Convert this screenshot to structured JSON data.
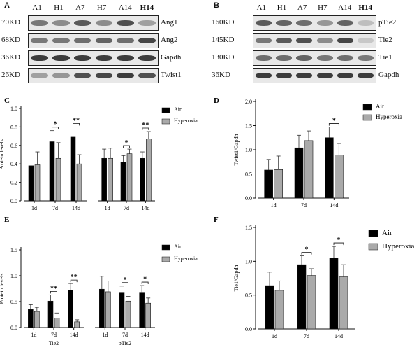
{
  "blot_A": {
    "letter": "A",
    "lanes": [
      "A1",
      "H1",
      "A7",
      "H7",
      "A14",
      "H14"
    ],
    "rows": [
      {
        "weight": "70KD",
        "protein": "Ang1",
        "intensity": [
          0.55,
          0.45,
          0.7,
          0.45,
          0.75,
          0.35
        ]
      },
      {
        "weight": "68KD",
        "protein": "Ang2",
        "intensity": [
          0.55,
          0.55,
          0.6,
          0.65,
          0.6,
          0.8
        ]
      },
      {
        "weight": "36KD",
        "protein": "Gapdh",
        "intensity": [
          0.85,
          0.85,
          0.85,
          0.85,
          0.85,
          0.85
        ]
      },
      {
        "weight": "26KD",
        "protein": "Twist1",
        "intensity": [
          0.35,
          0.4,
          0.75,
          0.8,
          0.85,
          0.75
        ]
      }
    ]
  },
  "blot_B": {
    "letter": "B",
    "lanes": [
      "A1",
      "H1",
      "A7",
      "H7",
      "A14",
      "H14"
    ],
    "rows": [
      {
        "weight": "160KD",
        "protein": "pTie2",
        "intensity": [
          0.7,
          0.65,
          0.6,
          0.4,
          0.65,
          0.2
        ]
      },
      {
        "weight": "145KD",
        "protein": "Tie2",
        "intensity": [
          0.55,
          0.7,
          0.75,
          0.45,
          0.8,
          0.15
        ]
      },
      {
        "weight": "130KD",
        "protein": "Tie1",
        "intensity": [
          0.6,
          0.6,
          0.65,
          0.55,
          0.6,
          0.55
        ]
      },
      {
        "weight": "36KD",
        "protein": "Gapdh",
        "intensity": [
          0.85,
          0.85,
          0.85,
          0.85,
          0.85,
          0.85
        ]
      }
    ]
  },
  "chart_data": [
    {
      "letter": "C",
      "type": "bar",
      "ylabel": "Protein levels",
      "ylim": [
        0,
        1.0
      ],
      "yticks": [
        0.0,
        0.2,
        0.4,
        0.6,
        0.8,
        1.0
      ],
      "groups": [
        {
          "name": "Ang1",
          "categories": [
            "1d",
            "7d",
            "14d"
          ],
          "air": [
            0.38,
            0.64,
            0.69
          ],
          "air_err": [
            0.17,
            0.12,
            0.11
          ],
          "hyperoxia": [
            0.39,
            0.46,
            0.4
          ],
          "hyperoxia_err": [
            0.14,
            0.17,
            0.1
          ],
          "sig": [
            "",
            "*",
            "**"
          ]
        },
        {
          "name": "Ang2",
          "categories": [
            "1d",
            "7d",
            "14d"
          ],
          "air": [
            0.46,
            0.42,
            0.46
          ],
          "air_err": [
            0.1,
            0.07,
            0.07
          ],
          "hyperoxia": [
            0.46,
            0.51,
            0.67
          ],
          "hyperoxia_err": [
            0.11,
            0.05,
            0.08
          ],
          "sig": [
            "",
            "*",
            "**"
          ]
        }
      ],
      "legend": [
        "Air",
        "Hyperoxia"
      ]
    },
    {
      "letter": "D",
      "type": "bar",
      "ylabel": "Twist1/Gapdh",
      "ylim": [
        0,
        2.0
      ],
      "yticks": [
        0.0,
        0.5,
        1.0,
        1.5,
        2.0
      ],
      "groups": [
        {
          "name": "",
          "categories": [
            "1d",
            "7d",
            "14d"
          ],
          "air": [
            0.58,
            1.04,
            1.25
          ],
          "air_err": [
            0.22,
            0.26,
            0.22
          ],
          "hyperoxia": [
            0.59,
            1.19,
            0.89
          ],
          "hyperoxia_err": [
            0.28,
            0.2,
            0.24
          ],
          "sig": [
            "",
            "",
            "*"
          ]
        }
      ],
      "legend": [
        "Air",
        "Hyperoxia"
      ]
    },
    {
      "letter": "E",
      "type": "bar",
      "ylabel": "Protein levels",
      "ylim": [
        0,
        1.5
      ],
      "yticks": [
        0.0,
        0.5,
        1.0,
        1.5
      ],
      "groups": [
        {
          "name": "Tie2",
          "categories": [
            "1d",
            "7d",
            "14d"
          ],
          "air": [
            0.35,
            0.51,
            0.72
          ],
          "air_err": [
            0.09,
            0.12,
            0.13
          ],
          "hyperoxia": [
            0.31,
            0.18,
            0.11
          ],
          "hyperoxia_err": [
            0.08,
            0.1,
            0.04
          ],
          "sig": [
            "",
            "**",
            "**"
          ]
        },
        {
          "name": "pTie2",
          "categories": [
            "1d",
            "7d",
            "14d"
          ],
          "air": [
            0.74,
            0.68,
            0.68
          ],
          "air_err": [
            0.25,
            0.12,
            0.13
          ],
          "hyperoxia": [
            0.69,
            0.51,
            0.47
          ],
          "hyperoxia_err": [
            0.21,
            0.09,
            0.1
          ],
          "sig": [
            "",
            "*",
            "*"
          ]
        }
      ],
      "legend": [
        "Air",
        "Hyperoxia"
      ]
    },
    {
      "letter": "F",
      "type": "bar",
      "ylabel": "Tie1/Gapdh",
      "ylim": [
        0,
        1.5
      ],
      "yticks": [
        0.0,
        0.5,
        1.0,
        1.5
      ],
      "groups": [
        {
          "name": "",
          "categories": [
            "1d",
            "7d",
            "14d"
          ],
          "air": [
            0.64,
            0.95,
            1.05
          ],
          "air_err": [
            0.2,
            0.13,
            0.17
          ],
          "hyperoxia": [
            0.57,
            0.79,
            0.77
          ],
          "hyperoxia_err": [
            0.14,
            0.1,
            0.18
          ],
          "sig": [
            "",
            "*",
            "*"
          ]
        }
      ],
      "legend": [
        "Air",
        "Hyperoxia"
      ]
    }
  ],
  "colors": {
    "air": "#000000",
    "hyperoxia": "#aaaaaa",
    "axis": "#111111"
  }
}
